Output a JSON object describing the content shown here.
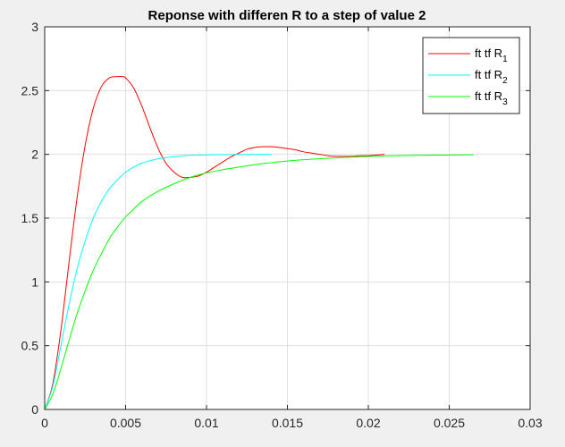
{
  "chart_data": {
    "type": "line",
    "title": "Reponse with differen R to a step of value 2",
    "xlabel": "",
    "ylabel": "",
    "xlim": [
      0,
      0.03
    ],
    "ylim": [
      0,
      3
    ],
    "xticks": [
      "0",
      "0.005",
      "0.01",
      "0.015",
      "0.02",
      "0.025",
      "0.03"
    ],
    "xtick_values": [
      0,
      0.005,
      0.01,
      0.015,
      0.02,
      0.025,
      0.03
    ],
    "yticks": [
      "0",
      "0.5",
      "1",
      "1.5",
      "2",
      "2.5",
      "3"
    ],
    "ytick_values": [
      0,
      0.5,
      1,
      1.5,
      2,
      2.5,
      3
    ],
    "grid": true,
    "legend_position": "top-right",
    "series": [
      {
        "name": "ft tf R",
        "subscript": "1",
        "color": "#ff0000",
        "x": [
          0,
          0.0005,
          0.001,
          0.0015,
          0.002,
          0.0025,
          0.003,
          0.0035,
          0.004,
          0.0045,
          0.0048,
          0.005,
          0.0055,
          0.006,
          0.0065,
          0.007,
          0.0075,
          0.008,
          0.0085,
          0.009,
          0.0095,
          0.01,
          0.0105,
          0.011,
          0.0115,
          0.012,
          0.0125,
          0.013,
          0.0135,
          0.014,
          0.0145,
          0.015,
          0.0155,
          0.016,
          0.0165,
          0.017,
          0.0175,
          0.018,
          0.0185,
          0.019,
          0.0195,
          0.02,
          0.0205,
          0.021
        ],
        "y": [
          0,
          0.2,
          0.62,
          1.15,
          1.66,
          2.07,
          2.36,
          2.53,
          2.6,
          2.61,
          2.61,
          2.6,
          2.52,
          2.38,
          2.21,
          2.05,
          1.93,
          1.86,
          1.82,
          1.82,
          1.83,
          1.86,
          1.9,
          1.94,
          1.98,
          2.01,
          2.04,
          2.055,
          2.06,
          2.06,
          2.055,
          2.045,
          2.035,
          2.02,
          2.01,
          2.0,
          1.99,
          1.985,
          1.985,
          1.985,
          1.99,
          1.99,
          1.995,
          2.0
        ]
      },
      {
        "name": "ft tf R",
        "subscript": "2",
        "color": "#00ffff",
        "x": [
          0,
          0.0005,
          0.001,
          0.0015,
          0.002,
          0.0025,
          0.003,
          0.0035,
          0.004,
          0.0045,
          0.005,
          0.0055,
          0.006,
          0.0065,
          0.007,
          0.0075,
          0.008,
          0.0085,
          0.009,
          0.0095,
          0.01,
          0.011,
          0.012,
          0.013,
          0.014
        ],
        "y": [
          0,
          0.18,
          0.5,
          0.82,
          1.1,
          1.32,
          1.5,
          1.63,
          1.73,
          1.8,
          1.86,
          1.9,
          1.93,
          1.95,
          1.965,
          1.975,
          1.983,
          1.988,
          1.992,
          1.994,
          1.996,
          1.998,
          1.999,
          2.0,
          2.0
        ]
      },
      {
        "name": "ft tf R",
        "subscript": "3",
        "color": "#00ff00",
        "x": [
          0,
          0.0005,
          0.001,
          0.0015,
          0.002,
          0.0025,
          0.003,
          0.0035,
          0.004,
          0.0045,
          0.005,
          0.0055,
          0.006,
          0.007,
          0.008,
          0.009,
          0.01,
          0.011,
          0.012,
          0.013,
          0.014,
          0.015,
          0.016,
          0.017,
          0.018,
          0.019,
          0.02,
          0.021,
          0.022,
          0.023,
          0.024,
          0.025,
          0.0265
        ],
        "y": [
          0,
          0.12,
          0.32,
          0.54,
          0.75,
          0.93,
          1.09,
          1.22,
          1.34,
          1.43,
          1.51,
          1.57,
          1.63,
          1.71,
          1.77,
          1.82,
          1.855,
          1.88,
          1.9,
          1.92,
          1.935,
          1.948,
          1.958,
          1.966,
          1.973,
          1.978,
          1.983,
          1.987,
          1.99,
          1.992,
          1.994,
          1.995,
          1.997
        ]
      }
    ]
  }
}
